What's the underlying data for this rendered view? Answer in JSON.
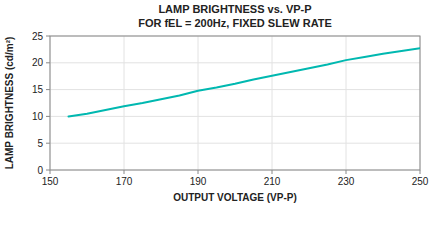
{
  "chart_data": {
    "type": "line",
    "title": "LAMP BRIGHTNESS vs. VP-P",
    "subtitle": "FOR fEL = 200Hz, FIXED SLEW RATE",
    "xlabel": "OUTPUT VOLTAGE (VP-P)",
    "ylabel": "LAMP BRIGHTNESS (cd/m²)",
    "x": [
      155,
      160,
      165,
      170,
      175,
      180,
      185,
      190,
      195,
      200,
      205,
      210,
      215,
      220,
      225,
      230,
      235,
      240,
      245,
      250
    ],
    "values": [
      10.0,
      10.5,
      11.2,
      11.9,
      12.5,
      13.2,
      13.9,
      14.8,
      15.4,
      16.1,
      16.9,
      17.6,
      18.3,
      19.0,
      19.7,
      20.5,
      21.1,
      21.7,
      22.2,
      22.7
    ],
    "color": "#00B8B0",
    "xlim": [
      150,
      250
    ],
    "ylim": [
      0,
      25
    ],
    "xticks": [
      150,
      170,
      190,
      210,
      230,
      250
    ],
    "yticks": [
      0,
      5,
      10,
      15,
      20,
      25
    ],
    "grid": true
  }
}
